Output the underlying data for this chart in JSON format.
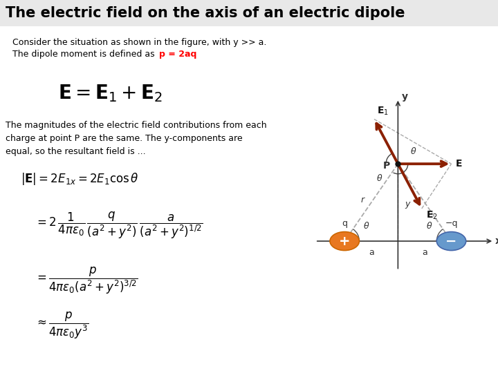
{
  "title": "The electric field on the axis of an electric dipole",
  "title_fontsize": 15,
  "background_color": "#ffffff",
  "text_color": "#000000",
  "arrow_color": "#8B2000",
  "dashed_color": "#aaaaaa",
  "pos_charge_color": "#E87820",
  "neg_charge_color": "#6699CC",
  "text1_line1": "Consider the situation as shown in the figure, with y >> a.",
  "text1_line2": "The dipole moment is defined as",
  "text1_p_eq": "p = 2aq",
  "eq_main": "$\\mathbf{E} = \\mathbf{E}_1 + \\mathbf{E}_2$",
  "text2": "The magnitudes of the electric field contributions from each\ncharge at point P are the same. The y-components are\nequal, so the resultant field is ...",
  "eq1": "$|\\mathbf{E}| = 2E_{1x} = 2E_1 \\cos\\theta$",
  "eq2": "$= 2\\,\\dfrac{1}{4\\pi\\varepsilon_0}\\,\\dfrac{q}{(a^2+y^2)}\\,\\dfrac{a}{(a^2+y^2)^{1/2}}$",
  "eq3": "$= \\dfrac{p}{4\\pi\\varepsilon_0(a^2+y^2)^{3/2}}$",
  "eq4": "$\\approx \\dfrac{p}{4\\pi\\varepsilon_0 y^3}$"
}
